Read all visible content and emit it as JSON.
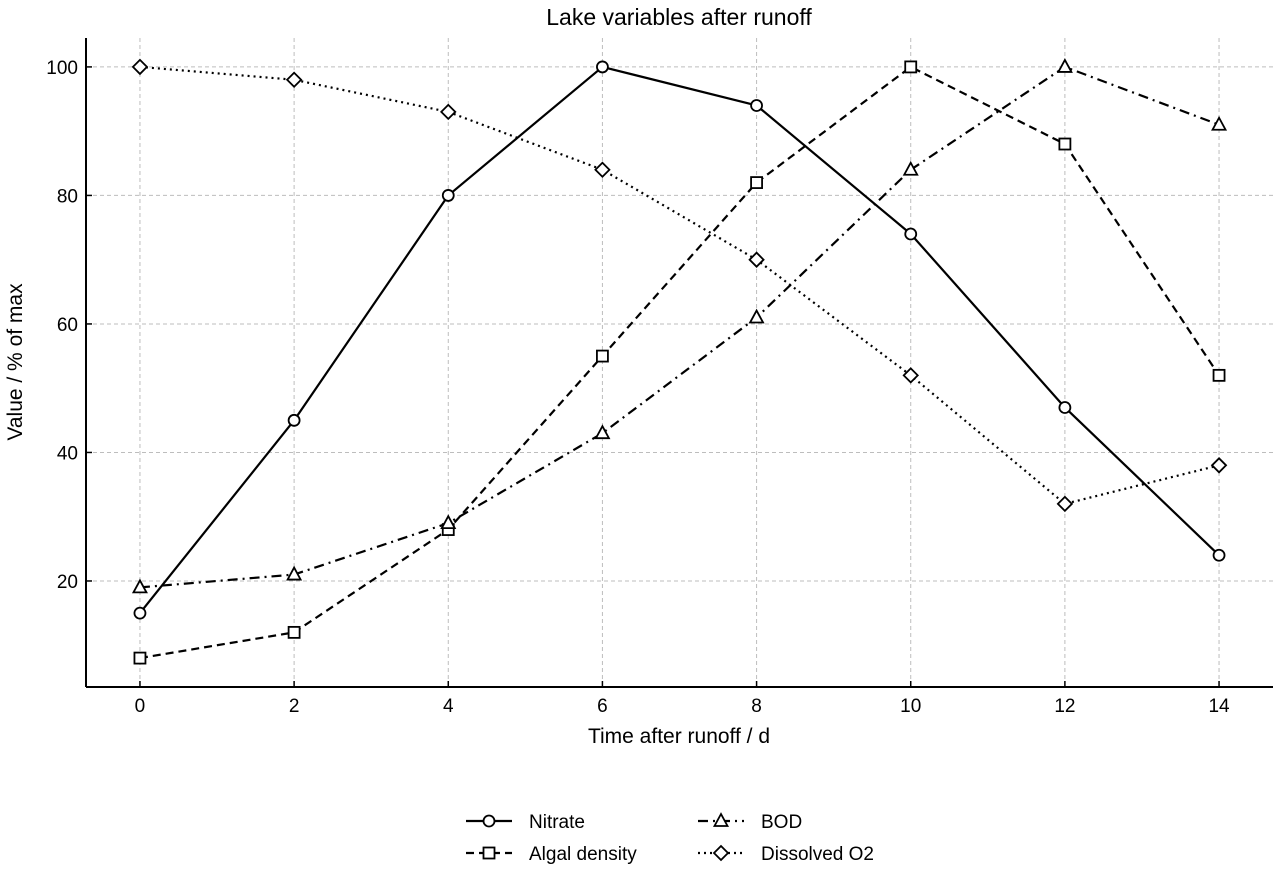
{
  "chart_data": {
    "type": "line",
    "title": "Lake variables after runoff",
    "xlabel": "Time after runoff / d",
    "ylabel": "Value / % of max",
    "x": [
      0,
      2,
      4,
      6,
      8,
      10,
      12,
      14
    ],
    "xlim": [
      -0.7,
      14.7
    ],
    "ylim": [
      3.5,
      104.5
    ],
    "xticks": [
      "0",
      "2",
      "4",
      "6",
      "8",
      "10",
      "12",
      "14"
    ],
    "yticks": [
      "20",
      "40",
      "60",
      "80",
      "100"
    ],
    "grid": true,
    "legend_position": "bottom-center",
    "color": "#000000",
    "series": [
      {
        "name": "Nitrate",
        "values": [
          15,
          45,
          80,
          100,
          94,
          74,
          47,
          24
        ],
        "marker": "circle",
        "linestyle": "solid"
      },
      {
        "name": "Algal density",
        "values": [
          8,
          12,
          28,
          55,
          82,
          100,
          88,
          52
        ],
        "marker": "square",
        "linestyle": "dashed"
      },
      {
        "name": "BOD",
        "values": [
          19,
          21,
          29,
          43,
          61,
          84,
          100,
          91
        ],
        "marker": "triangle",
        "linestyle": "dashdot"
      },
      {
        "name": "Dissolved O2",
        "values": [
          100,
          98,
          93,
          84,
          70,
          52,
          32,
          38
        ],
        "marker": "diamond",
        "linestyle": "dotted"
      }
    ]
  }
}
